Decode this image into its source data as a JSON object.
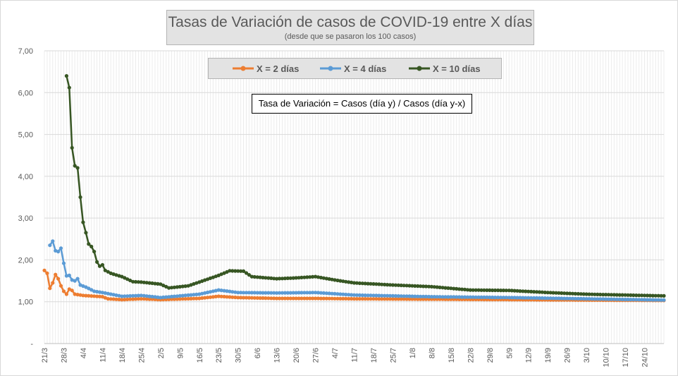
{
  "chart": {
    "title": "Tasas de Variación de casos de COVID-19 entre X días",
    "subtitle": "(desde que se pasaron los 100 casos)",
    "formula": "Tasa de Variación = Casos (día y) / Casos (día y-x)"
  },
  "chart_data": {
    "type": "line",
    "title": "Tasas de Variación de casos de COVID-19 entre X días",
    "subtitle": "(desde que se pasaron los 100 casos)",
    "xlabel": "",
    "ylabel": "",
    "ylim": [
      0,
      7
    ],
    "y_ticks": [
      "-",
      "1,00",
      "2,00",
      "3,00",
      "4,00",
      "5,00",
      "6,00",
      "7,00"
    ],
    "x_tick_labels": [
      "21/3",
      "28/3",
      "4/4",
      "11/4",
      "18/4",
      "25/4",
      "2/5",
      "9/5",
      "16/5",
      "23/5",
      "30/5",
      "6/6",
      "13/6",
      "20/6",
      "27/6",
      "4/7",
      "11/7",
      "18/7",
      "25/7",
      "1/8",
      "8/8",
      "15/8",
      "22/8",
      "29/8",
      "5/9",
      "12/9",
      "19/9",
      "26/9",
      "3/10",
      "10/10",
      "17/10",
      "24/10"
    ],
    "x_start": "21/3",
    "x_end": "31/10",
    "gridlines": "vertical and horizontal",
    "legend_position": "top",
    "series": [
      {
        "name": "X = 2 días",
        "color": "#ed7d31",
        "points": [
          {
            "date": "21/3",
            "value": 1.75
          },
          {
            "date": "22/3",
            "value": 1.68
          },
          {
            "date": "23/3",
            "value": 1.32
          },
          {
            "date": "24/3",
            "value": 1.45
          },
          {
            "date": "25/3",
            "value": 1.65
          },
          {
            "date": "26/3",
            "value": 1.55
          },
          {
            "date": "27/3",
            "value": 1.38
          },
          {
            "date": "28/3",
            "value": 1.25
          },
          {
            "date": "29/3",
            "value": 1.18
          },
          {
            "date": "30/3",
            "value": 1.3
          },
          {
            "date": "31/3",
            "value": 1.27
          },
          {
            "date": "1/4",
            "value": 1.18
          },
          {
            "date": "4/4",
            "value": 1.15
          },
          {
            "date": "11/4",
            "value": 1.12
          },
          {
            "date": "13/4",
            "value": 1.07
          },
          {
            "date": "18/4",
            "value": 1.05
          },
          {
            "date": "25/4",
            "value": 1.07
          },
          {
            "date": "2/5",
            "value": 1.05
          },
          {
            "date": "16/5",
            "value": 1.08
          },
          {
            "date": "23/5",
            "value": 1.13
          },
          {
            "date": "30/5",
            "value": 1.1
          },
          {
            "date": "13/6",
            "value": 1.08
          },
          {
            "date": "27/6",
            "value": 1.08
          },
          {
            "date": "11/7",
            "value": 1.07
          },
          {
            "date": "8/8",
            "value": 1.06
          },
          {
            "date": "5/9",
            "value": 1.05
          },
          {
            "date": "3/10",
            "value": 1.04
          },
          {
            "date": "31/10",
            "value": 1.03
          }
        ]
      },
      {
        "name": "X = 4 días",
        "color": "#5b9bd5",
        "points": [
          {
            "date": "23/3",
            "value": 2.35
          },
          {
            "date": "24/3",
            "value": 2.45
          },
          {
            "date": "25/3",
            "value": 2.22
          },
          {
            "date": "26/3",
            "value": 2.2
          },
          {
            "date": "27/3",
            "value": 2.28
          },
          {
            "date": "28/3",
            "value": 1.92
          },
          {
            "date": "29/3",
            "value": 1.62
          },
          {
            "date": "30/3",
            "value": 1.63
          },
          {
            "date": "31/3",
            "value": 1.52
          },
          {
            "date": "1/4",
            "value": 1.5
          },
          {
            "date": "2/4",
            "value": 1.55
          },
          {
            "date": "3/4",
            "value": 1.4
          },
          {
            "date": "5/4",
            "value": 1.35
          },
          {
            "date": "8/4",
            "value": 1.25
          },
          {
            "date": "11/4",
            "value": 1.22
          },
          {
            "date": "18/4",
            "value": 1.13
          },
          {
            "date": "25/4",
            "value": 1.15
          },
          {
            "date": "2/5",
            "value": 1.1
          },
          {
            "date": "16/5",
            "value": 1.18
          },
          {
            "date": "23/5",
            "value": 1.28
          },
          {
            "date": "30/5",
            "value": 1.22
          },
          {
            "date": "13/6",
            "value": 1.21
          },
          {
            "date": "27/6",
            "value": 1.22
          },
          {
            "date": "11/7",
            "value": 1.16
          },
          {
            "date": "8/8",
            "value": 1.12
          },
          {
            "date": "5/9",
            "value": 1.1
          },
          {
            "date": "3/10",
            "value": 1.07
          },
          {
            "date": "31/10",
            "value": 1.04
          }
        ]
      },
      {
        "name": "X = 10 días",
        "color": "#375623",
        "points": [
          {
            "date": "29/3",
            "value": 6.4
          },
          {
            "date": "30/3",
            "value": 6.12
          },
          {
            "date": "31/3",
            "value": 4.68
          },
          {
            "date": "1/4",
            "value": 4.25
          },
          {
            "date": "2/4",
            "value": 4.2
          },
          {
            "date": "3/4",
            "value": 3.5
          },
          {
            "date": "4/4",
            "value": 2.9
          },
          {
            "date": "5/4",
            "value": 2.65
          },
          {
            "date": "6/4",
            "value": 2.38
          },
          {
            "date": "7/4",
            "value": 2.32
          },
          {
            "date": "8/4",
            "value": 2.2
          },
          {
            "date": "9/4",
            "value": 1.95
          },
          {
            "date": "10/4",
            "value": 1.85
          },
          {
            "date": "11/4",
            "value": 1.88
          },
          {
            "date": "12/4",
            "value": 1.75
          },
          {
            "date": "14/4",
            "value": 1.68
          },
          {
            "date": "18/4",
            "value": 1.6
          },
          {
            "date": "22/4",
            "value": 1.48
          },
          {
            "date": "25/4",
            "value": 1.47
          },
          {
            "date": "2/5",
            "value": 1.42
          },
          {
            "date": "5/5",
            "value": 1.33
          },
          {
            "date": "12/5",
            "value": 1.38
          },
          {
            "date": "16/5",
            "value": 1.47
          },
          {
            "date": "23/5",
            "value": 1.63
          },
          {
            "date": "27/5",
            "value": 1.74
          },
          {
            "date": "1/6",
            "value": 1.73
          },
          {
            "date": "4/6",
            "value": 1.6
          },
          {
            "date": "13/6",
            "value": 1.55
          },
          {
            "date": "20/6",
            "value": 1.57
          },
          {
            "date": "27/6",
            "value": 1.6
          },
          {
            "date": "4/7",
            "value": 1.52
          },
          {
            "date": "11/7",
            "value": 1.45
          },
          {
            "date": "25/7",
            "value": 1.4
          },
          {
            "date": "8/8",
            "value": 1.36
          },
          {
            "date": "22/8",
            "value": 1.28
          },
          {
            "date": "5/9",
            "value": 1.27
          },
          {
            "date": "19/9",
            "value": 1.22
          },
          {
            "date": "3/10",
            "value": 1.18
          },
          {
            "date": "17/10",
            "value": 1.16
          },
          {
            "date": "31/10",
            "value": 1.14
          }
        ]
      }
    ]
  }
}
